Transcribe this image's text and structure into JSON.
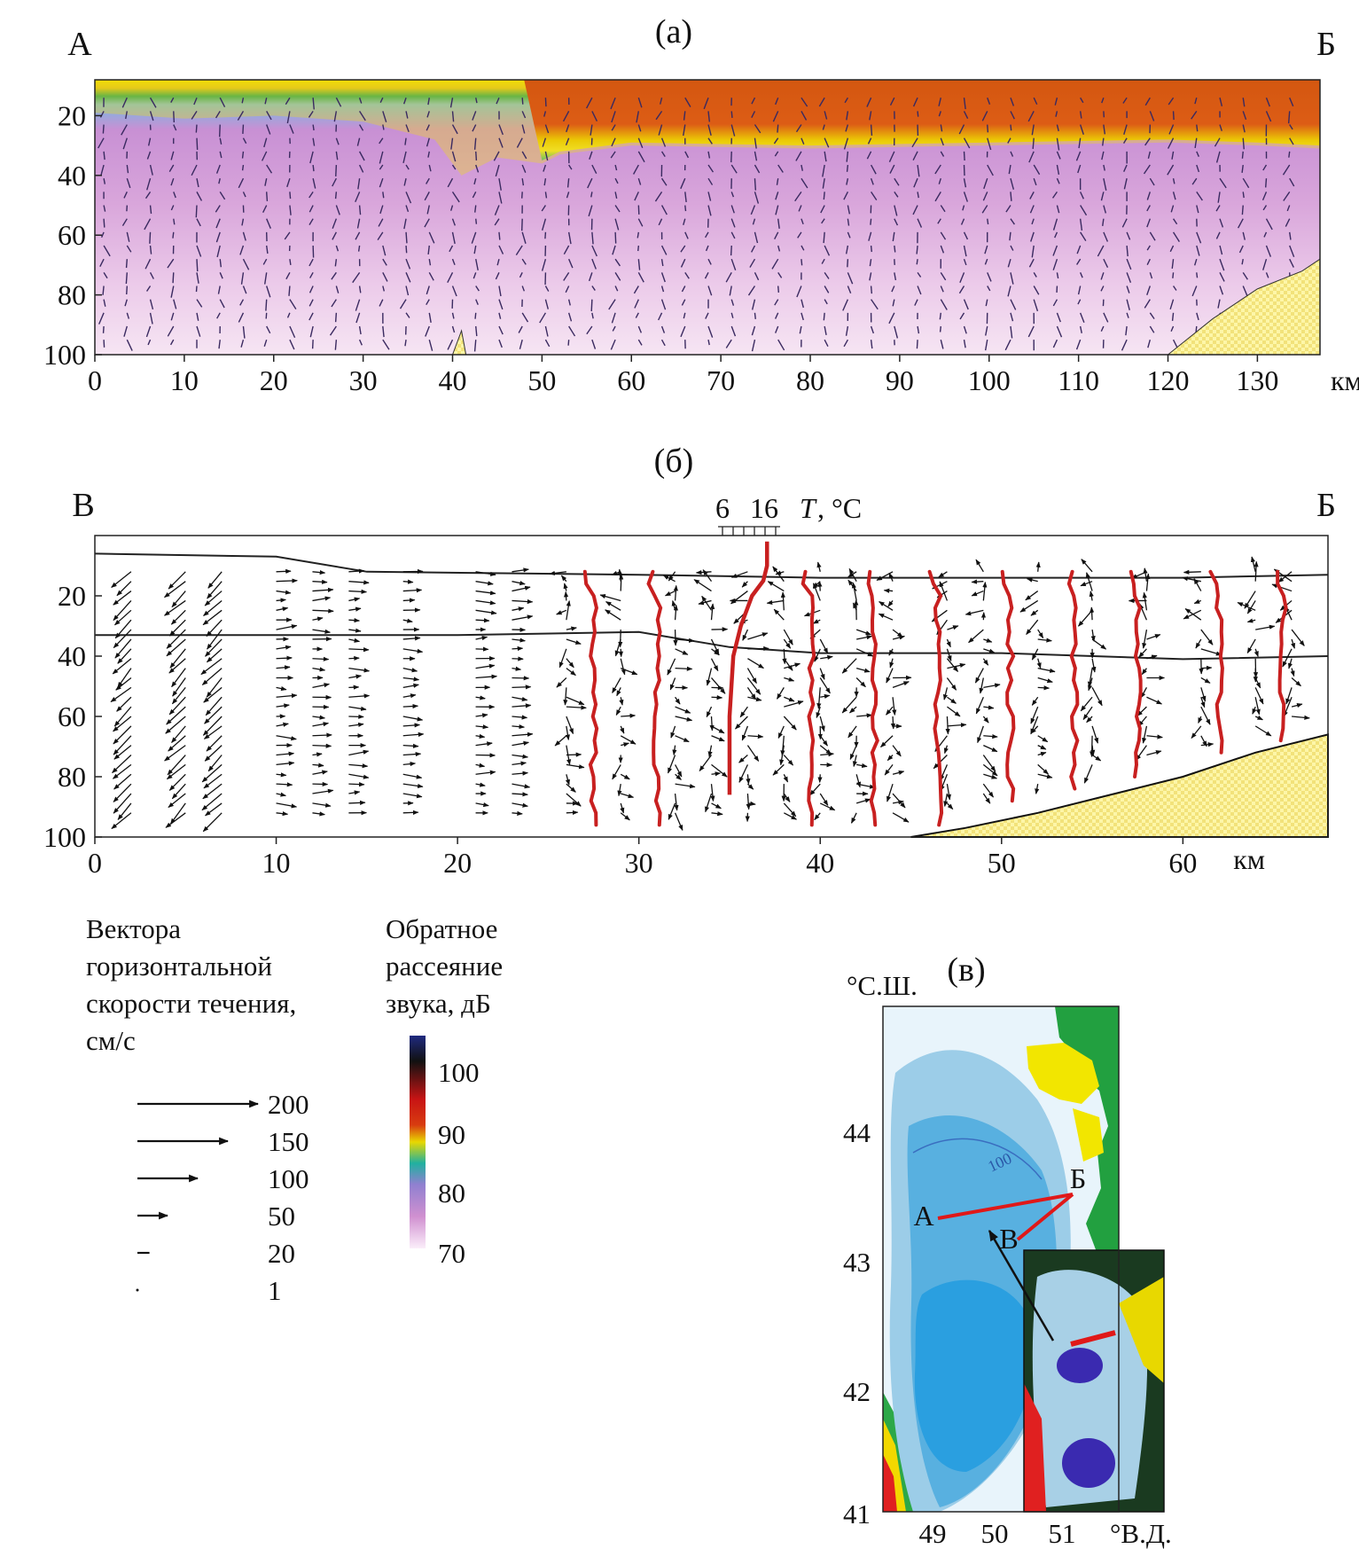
{
  "panels": {
    "a": {
      "title": "(а)",
      "left_label": "А",
      "right_label": "Б",
      "y_ticks": [
        "20",
        "40",
        "60",
        "80",
        "100"
      ],
      "x_ticks": [
        "0",
        "10",
        "20",
        "30",
        "40",
        "50",
        "60",
        "70",
        "80",
        "90",
        "100",
        "110",
        "120",
        "130"
      ],
      "x_unit": "км"
    },
    "b": {
      "title": "(б)",
      "left_label": "В",
      "right_label": "Б",
      "temp_scale": {
        "t1": "6",
        "t2": "16",
        "unit_T": "T",
        "unit_rest": ", °C"
      },
      "y_ticks": [
        "20",
        "40",
        "60",
        "80",
        "100"
      ],
      "x_ticks": [
        "0",
        "10",
        "20",
        "30",
        "40",
        "50",
        "60"
      ],
      "x_unit": "км"
    },
    "c": {
      "title": "(в)",
      "lat_label": "°С.Ш.",
      "lon_label": "°В.Д.",
      "lat_ticks": [
        "44",
        "43",
        "42",
        "41"
      ],
      "lon_ticks": [
        "49",
        "50",
        "51"
      ],
      "contour_label": "100",
      "points": {
        "A": "А",
        "B": "Б",
        "V": "В"
      }
    }
  },
  "legend_vectors": {
    "title_lines": [
      "Вектора",
      "горизонтальной",
      "скорости течения,",
      "см/с"
    ],
    "items": [
      "200",
      "150",
      "100",
      "50",
      "20",
      "1"
    ],
    "magnitudes": [
      200,
      150,
      100,
      50,
      20,
      1
    ]
  },
  "legend_backscatter": {
    "title_lines": [
      "Обратное",
      "рассеяние",
      "звука, дБ"
    ],
    "ticks": [
      "100",
      "90",
      "80",
      "70"
    ],
    "colors": [
      "#1f2a80",
      "#111111",
      "#c81414",
      "#e8d800",
      "#20b0a0",
      "#c070c0",
      "#f4e0f0"
    ]
  },
  "chart_data": [
    {
      "type": "heatmap",
      "title": "(а)",
      "xlabel": "км",
      "ylabel": "",
      "xlim": [
        0,
        137
      ],
      "ylim": [
        100,
        8
      ],
      "description_of_layers": "sound backscatter dB with horizontal current vectors",
      "surface_layer_bottom_depth": {
        "x": [
          0,
          10,
          20,
          30,
          38,
          41,
          45,
          50,
          52,
          60,
          80,
          100,
          120,
          130,
          137
        ],
        "y": [
          19,
          21,
          20,
          22,
          28,
          40,
          34,
          36,
          33,
          30,
          31,
          30,
          29,
          30,
          31
        ]
      },
      "warm_layer_extent_km": [
        48,
        137
      ],
      "bottom_depth": {
        "x": [
          40,
          41,
          41.5,
          120,
          125,
          130,
          135,
          137
        ],
        "y": [
          100,
          92,
          100,
          100,
          88,
          78,
          72,
          68
        ]
      }
    },
    {
      "type": "scatter",
      "title": "(б)",
      "xlabel": "км",
      "ylabel": "",
      "xlim": [
        0,
        68
      ],
      "ylim": [
        100,
        0
      ],
      "thermocline_upper_m": {
        "x": [
          0,
          10,
          15,
          30,
          40,
          50,
          60,
          68
        ],
        "y": [
          6,
          7,
          12,
          13,
          14,
          14,
          14,
          13
        ]
      },
      "thermocline_lower_m": {
        "x": [
          0,
          20,
          30,
          35,
          40,
          50,
          60,
          68
        ],
        "y": [
          33,
          33,
          32,
          37,
          39,
          39,
          41,
          40
        ]
      },
      "temperature_profile_at_km_35": {
        "depth": [
          2,
          10,
          15,
          20,
          30,
          40,
          60,
          86
        ],
        "T": [
          16,
          16,
          15,
          12,
          9,
          7,
          6,
          6
        ]
      },
      "temperature_profile_stations_km": [
        27.5,
        31,
        39.5,
        43,
        46.5,
        50.5,
        54,
        57.5,
        62,
        65.5
      ],
      "vector_stations_km": [
        2,
        5,
        7,
        10,
        12,
        14,
        17,
        21,
        23,
        26,
        29,
        32,
        34,
        36,
        38,
        40,
        42,
        44,
        47,
        49,
        52,
        55,
        58,
        61,
        64,
        66
      ],
      "bottom_depth": {
        "x": [
          45,
          48,
          52,
          56,
          60,
          64,
          68
        ],
        "y": [
          100,
          97,
          92,
          86,
          80,
          72,
          66
        ]
      }
    }
  ]
}
